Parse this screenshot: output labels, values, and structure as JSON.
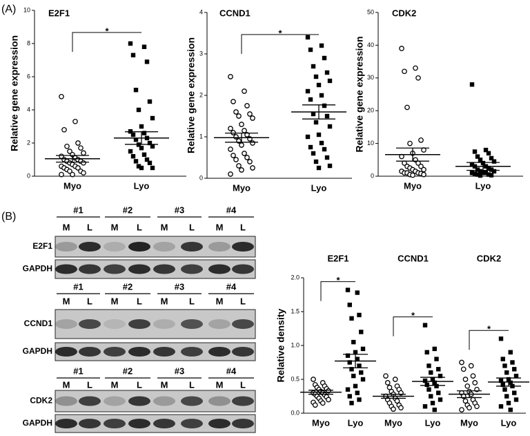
{
  "panels": [
    "(A)",
    "(B)"
  ],
  "blots": [
    {
      "groups": [
        "#1",
        "#2",
        "#3",
        "#4"
      ],
      "lanes": [
        "M",
        "L",
        "M",
        "L",
        "M",
        "L",
        "M",
        "L"
      ],
      "rows": [
        "E2F1",
        "GAPDH"
      ]
    },
    {
      "groups": [
        "#1",
        "#2",
        "#3",
        "#4"
      ],
      "lanes": [
        "M",
        "L",
        "M",
        "L",
        "M",
        "L",
        "M",
        "L"
      ],
      "rows": [
        "CCND1",
        "GAPDH"
      ]
    },
    {
      "groups": [
        "#1",
        "#2",
        "#3",
        "#4"
      ],
      "lanes": [
        "M",
        "L",
        "M",
        "L",
        "M",
        "L",
        "M",
        "L"
      ],
      "rows": [
        "CDK2",
        "GAPDH"
      ]
    }
  ],
  "chart_data": [
    {
      "type": "strip",
      "title": "E2F1",
      "y_label": "Relative gene expression",
      "annotation": "*",
      "ylim": [
        0,
        10
      ],
      "yticks": [
        0,
        2,
        4,
        6,
        8,
        10
      ],
      "series": [
        {
          "name": "Myo",
          "marker": "open-circle",
          "color": "#000000",
          "mean": 1.05,
          "sem": 0.2,
          "values": [
            4.8,
            3.3,
            2.8,
            2.0,
            1.8,
            1.7,
            1.5,
            1.4,
            1.3,
            1.2,
            1.1,
            1.0,
            1.0,
            0.9,
            0.9,
            0.8,
            0.8,
            0.7,
            0.6,
            0.6,
            0.5,
            0.5,
            0.4,
            0.3,
            0.3,
            0.2,
            0.1,
            0.1
          ]
        },
        {
          "name": "Lyo",
          "marker": "filled-square",
          "color": "#000000",
          "mean": 2.3,
          "sem": 0.38,
          "values": [
            8.0,
            7.8,
            7.3,
            6.9,
            5.2,
            4.5,
            4.0,
            3.5,
            3.0,
            2.7,
            2.6,
            2.5,
            2.3,
            2.2,
            2.0,
            1.9,
            1.8,
            1.7,
            1.5,
            1.3,
            1.2,
            1.0,
            0.9,
            0.8,
            0.6,
            0.5,
            0.5
          ]
        }
      ]
    },
    {
      "type": "strip",
      "title": "CCND1",
      "y_label": "Relative gene expression",
      "annotation": "*",
      "ylim": [
        0,
        4
      ],
      "yticks": [
        0,
        1,
        2,
        3,
        4
      ],
      "series": [
        {
          "name": "Myo",
          "marker": "open-circle",
          "color": "#000000",
          "mean": 0.98,
          "sem": 0.11,
          "values": [
            2.45,
            2.1,
            1.85,
            1.75,
            1.6,
            1.55,
            1.5,
            1.45,
            1.3,
            1.2,
            1.15,
            1.1,
            1.05,
            1.0,
            0.95,
            0.9,
            0.85,
            0.8,
            0.7,
            0.6,
            0.55,
            0.5,
            0.45,
            0.4,
            0.3,
            0.25,
            0.2,
            0.1
          ]
        },
        {
          "name": "Lyo",
          "marker": "filled-square",
          "color": "#000000",
          "mean": 1.6,
          "sem": 0.17,
          "values": [
            3.4,
            3.2,
            3.1,
            2.9,
            2.7,
            2.55,
            2.45,
            2.35,
            2.25,
            2.1,
            2.0,
            1.9,
            1.75,
            1.55,
            1.5,
            1.35,
            1.25,
            1.05,
            1.0,
            0.85,
            0.75,
            0.7,
            0.6,
            0.5,
            0.4,
            0.3,
            0.25
          ]
        }
      ]
    },
    {
      "type": "strip",
      "title": "CDK2",
      "y_label": "Relative gene expression",
      "ylim": [
        0,
        50
      ],
      "yticks": [
        0,
        10,
        20,
        30,
        40,
        50
      ],
      "series": [
        {
          "name": "Myo",
          "marker": "open-circle",
          "color": "#000000",
          "mean": 6.6,
          "sem": 2,
          "values": [
            39,
            33,
            32,
            30,
            21,
            11,
            10,
            8,
            7,
            6,
            5,
            4,
            4,
            3,
            3,
            2.5,
            2,
            2,
            1.5,
            1.5,
            1,
            1,
            1,
            0.8,
            0.5,
            0.5,
            0.3
          ]
        },
        {
          "name": "Lyo",
          "marker": "filled-square",
          "color": "#000000",
          "mean": 3.0,
          "sem": 1.2,
          "values": [
            28,
            8,
            7.5,
            7,
            6,
            5.5,
            5,
            4.5,
            4,
            3.5,
            3,
            3,
            2.5,
            2,
            2,
            1.5,
            1.5,
            1,
            1,
            1,
            0.8,
            0.5,
            0.5,
            0.3,
            0.2
          ]
        }
      ]
    },
    {
      "type": "grouped-strip",
      "y_label": "Relative density",
      "ylim": [
        0,
        2
      ],
      "yticks": [
        {
          "value": 0,
          "label": "0.0"
        },
        {
          "value": 0.5,
          "label": "0.5"
        },
        {
          "value": 1,
          "label": "1.0"
        },
        {
          "value": 1.5,
          "label": "1.5"
        },
        {
          "value": 2,
          "label": "2.0"
        }
      ],
      "groups": [
        {
          "title": "E2F1",
          "annotation": "*"
        },
        {
          "title": "CCND1",
          "annotation": "*"
        },
        {
          "title": "CDK2",
          "annotation": "*"
        }
      ],
      "series": [
        {
          "name": "Myo",
          "marker": "open-circle",
          "color": "#000000",
          "mean": 0.31,
          "sem": 0.03,
          "values": [
            0.5,
            0.45,
            0.42,
            0.4,
            0.38,
            0.36,
            0.35,
            0.33,
            0.32,
            0.3,
            0.3,
            0.28,
            0.27,
            0.25,
            0.24,
            0.22,
            0.2,
            0.18,
            0.16,
            0.15,
            0.12
          ]
        },
        {
          "name": "Lyo",
          "marker": "filled-square",
          "color": "#000000",
          "mean": 0.77,
          "sem": 0.1,
          "values": [
            1.82,
            1.78,
            1.6,
            1.45,
            1.4,
            1.2,
            1.05,
            0.95,
            0.9,
            0.85,
            0.8,
            0.75,
            0.7,
            0.65,
            0.6,
            0.55,
            0.5,
            0.4,
            0.35,
            0.3,
            0.25,
            0.2,
            0.15
          ]
        },
        {
          "name": "Myo",
          "marker": "open-circle",
          "color": "#000000",
          "mean": 0.25,
          "sem": 0.03,
          "values": [
            0.55,
            0.5,
            0.45,
            0.4,
            0.38,
            0.35,
            0.32,
            0.3,
            0.28,
            0.25,
            0.22,
            0.2,
            0.18,
            0.15,
            0.12,
            0.1,
            0.08,
            0.06
          ]
        },
        {
          "name": "Lyo",
          "marker": "filled-square",
          "color": "#000000",
          "mean": 0.47,
          "sem": 0.06,
          "values": [
            1.3,
            0.95,
            0.9,
            0.8,
            0.7,
            0.65,
            0.6,
            0.55,
            0.5,
            0.48,
            0.45,
            0.42,
            0.4,
            0.35,
            0.3,
            0.25,
            0.2,
            0.15,
            0.1,
            0.05
          ]
        },
        {
          "name": "Myo",
          "marker": "open-circle",
          "color": "#000000",
          "mean": 0.28,
          "sem": 0.05,
          "values": [
            0.75,
            0.7,
            0.65,
            0.55,
            0.5,
            0.45,
            0.4,
            0.35,
            0.32,
            0.3,
            0.28,
            0.25,
            0.2,
            0.18,
            0.15,
            0.12,
            0.1,
            0.08,
            0.05
          ]
        },
        {
          "name": "Lyo",
          "marker": "filled-square",
          "color": "#000000",
          "mean": 0.46,
          "sem": 0.06,
          "values": [
            1.1,
            0.9,
            0.8,
            0.75,
            0.7,
            0.65,
            0.6,
            0.55,
            0.5,
            0.48,
            0.45,
            0.42,
            0.4,
            0.35,
            0.3,
            0.25,
            0.2,
            0.15,
            0.1,
            0.05
          ]
        }
      ]
    }
  ]
}
